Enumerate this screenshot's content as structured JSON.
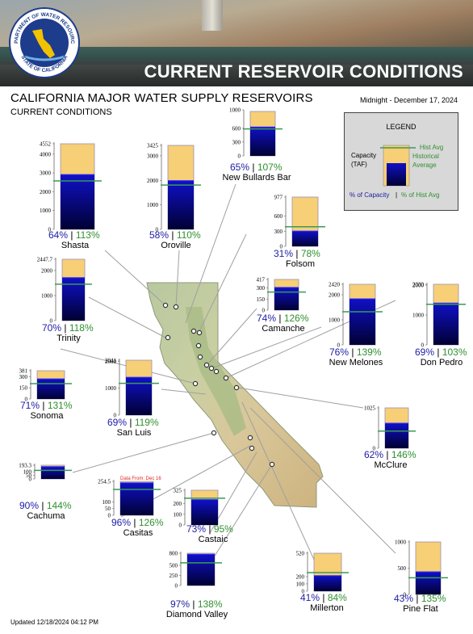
{
  "header": {
    "banner_title": "CURRENT RESERVOIR CONDITIONS",
    "seal_top_text": "DEPARTMENT OF WATER RESOURCES",
    "seal_bottom_text": "STATE OF CALIFORNIA",
    "main_title": "CALIFORNIA MAJOR WATER SUPPLY RESERVOIRS",
    "sub_title": "CURRENT CONDITIONS",
    "report_date": "Midnight - December 17, 2024"
  },
  "footer": {
    "updated": "Updated 12/18/2024 04:12 PM"
  },
  "legend": {
    "title": "LEGEND",
    "hist_avg_label": "Hist Avg",
    "capacity_label_1": "Capacity",
    "capacity_label_2": "(TAF)",
    "historical_label_1": "Historical",
    "historical_label_2": "Average",
    "pct_capacity_label": "% of Capacity",
    "separator": "|",
    "pct_hist_label": "% of Hist Avg"
  },
  "colors": {
    "capacity_fill": "#f7cf76",
    "storage_top": "#1010c8",
    "storage_bottom": "#000033",
    "hist_line": "#3a9a55",
    "pct_capacity": "#1c1ca6",
    "pct_hist": "#2f8f2f"
  },
  "chart_data": {
    "type": "bar",
    "title": "CALIFORNIA MAJOR WATER SUPPLY RESERVOIRS",
    "units": "TAF",
    "reservoirs": [
      {
        "name": "Shasta",
        "capacity": 4552,
        "storage": 2913,
        "hist_avg": 2578,
        "pct_capacity": "64%",
        "pct_hist": "113%",
        "ticks": [
          0,
          1000,
          2000,
          3000,
          4000,
          4552
        ],
        "tick_labels": [
          "0",
          "1000",
          "2000",
          "3000",
          "4000",
          "4552"
        ]
      },
      {
        "name": "Oroville",
        "capacity": 3425,
        "storage": 1987,
        "hist_avg": 1806,
        "pct_capacity": "58%",
        "pct_hist": "110%",
        "ticks": [
          0,
          1000,
          2000,
          3000,
          3425
        ],
        "tick_labels": [
          "0",
          "1000",
          "2000",
          "3000",
          "3425"
        ]
      },
      {
        "name": "New Bullards Bar",
        "capacity": 966,
        "storage": 628,
        "hist_avg": 587,
        "pct_capacity": "65%",
        "pct_hist": "107%",
        "ticks": [
          0,
          300,
          600,
          1000
        ],
        "tick_labels": [
          "0",
          "300",
          "600",
          "1000"
        ]
      },
      {
        "name": "Trinity",
        "capacity": 2447.7,
        "storage": 1713,
        "hist_avg": 1452,
        "pct_capacity": "70%",
        "pct_hist": "118%",
        "ticks": [
          0,
          1000,
          2000,
          2447.7
        ],
        "tick_labels": [
          "0",
          "1000",
          "2000",
          "2447.7"
        ]
      },
      {
        "name": "Folsom",
        "capacity": 977,
        "storage": 303,
        "hist_avg": 388,
        "pct_capacity": "31%",
        "pct_hist": "78%",
        "ticks": [
          0,
          300,
          600,
          977
        ],
        "tick_labels": [
          "0",
          "300",
          "600",
          "977"
        ]
      },
      {
        "name": "Camanche",
        "capacity": 417,
        "storage": 309,
        "hist_avg": 245,
        "pct_capacity": "74%",
        "pct_hist": "126%",
        "ticks": [
          0,
          150,
          300,
          417
        ],
        "tick_labels": [
          "0",
          "150",
          "300",
          "417"
        ]
      },
      {
        "name": "New Melones",
        "capacity": 2420,
        "storage": 1839,
        "hist_avg": 1323,
        "pct_capacity": "76%",
        "pct_hist": "139%",
        "ticks": [
          0,
          1000,
          2000,
          2420
        ],
        "tick_labels": [
          "0",
          "1000",
          "2000",
          "2420"
        ]
      },
      {
        "name": "Don Pedro",
        "capacity": 2030,
        "storage": 1401,
        "hist_avg": 1360,
        "pct_capacity": "69%",
        "pct_hist": "103%",
        "ticks": [
          0,
          1000,
          2000,
          2030
        ],
        "tick_labels": [
          "0",
          "1000",
          "2000",
          "2030"
        ]
      },
      {
        "name": "Sonoma",
        "capacity": 381,
        "storage": 271,
        "hist_avg": 207,
        "pct_capacity": "71%",
        "pct_hist": "131%",
        "ticks": [
          0,
          150,
          300,
          381
        ],
        "tick_labels": [
          "0",
          "150",
          "300",
          "381"
        ]
      },
      {
        "name": "San Luis",
        "capacity": 2041,
        "storage": 1408,
        "hist_avg": 1183,
        "pct_capacity": "69%",
        "pct_hist": "119%",
        "ticks": [
          0,
          1000,
          2000,
          2041
        ],
        "tick_labels": [
          "0",
          "1000",
          "2000",
          "2041"
        ]
      },
      {
        "name": "McClure",
        "capacity": 1025,
        "storage": 636,
        "hist_avg": 436,
        "pct_capacity": "62%",
        "pct_hist": "146%",
        "ticks": [
          0,
          1025
        ],
        "tick_labels": [
          "0",
          "1025"
        ]
      },
      {
        "name": "Cachuma",
        "capacity": 193.3,
        "storage": 174,
        "hist_avg": 121,
        "pct_capacity": "90%",
        "pct_hist": "144%",
        "ticks": [
          0,
          50,
          100,
          193.3
        ],
        "tick_labels": [
          "0",
          "50",
          "100",
          "193.3"
        ]
      },
      {
        "name": "Casitas",
        "capacity": 254.5,
        "storage": 244,
        "hist_avg": 194,
        "pct_capacity": "96%",
        "pct_hist": "126%",
        "ticks": [
          0,
          50,
          100,
          254.5
        ],
        "tick_labels": [
          "0",
          "50",
          "100",
          "254.5"
        ],
        "note": "Data From: Dec 16"
      },
      {
        "name": "Castaic",
        "capacity": 325,
        "storage": 237,
        "hist_avg": 250,
        "pct_capacity": "73%",
        "pct_hist": "95%",
        "ticks": [
          0,
          100,
          200,
          325
        ],
        "tick_labels": [
          "0",
          "100",
          "200",
          "325"
        ]
      },
      {
        "name": "Diamond Valley",
        "capacity": 800,
        "storage": 776,
        "hist_avg": 562,
        "pct_capacity": "97%",
        "pct_hist": "138%",
        "ticks": [
          0,
          250,
          500,
          800
        ],
        "tick_labels": [
          "0",
          "250",
          "500",
          "800"
        ]
      },
      {
        "name": "Millerton",
        "capacity": 520,
        "storage": 213,
        "hist_avg": 254,
        "pct_capacity": "41%",
        "pct_hist": "84%",
        "ticks": [
          0,
          100,
          200,
          520
        ],
        "tick_labels": [
          "0",
          "100",
          "200",
          "520"
        ]
      },
      {
        "name": "Pine Flat",
        "capacity": 1000,
        "storage": 430,
        "hist_avg": 318,
        "pct_capacity": "43%",
        "pct_hist": "135%",
        "ticks": [
          0,
          500,
          1000
        ],
        "tick_labels": [
          "0",
          "500",
          "1000"
        ]
      }
    ]
  }
}
